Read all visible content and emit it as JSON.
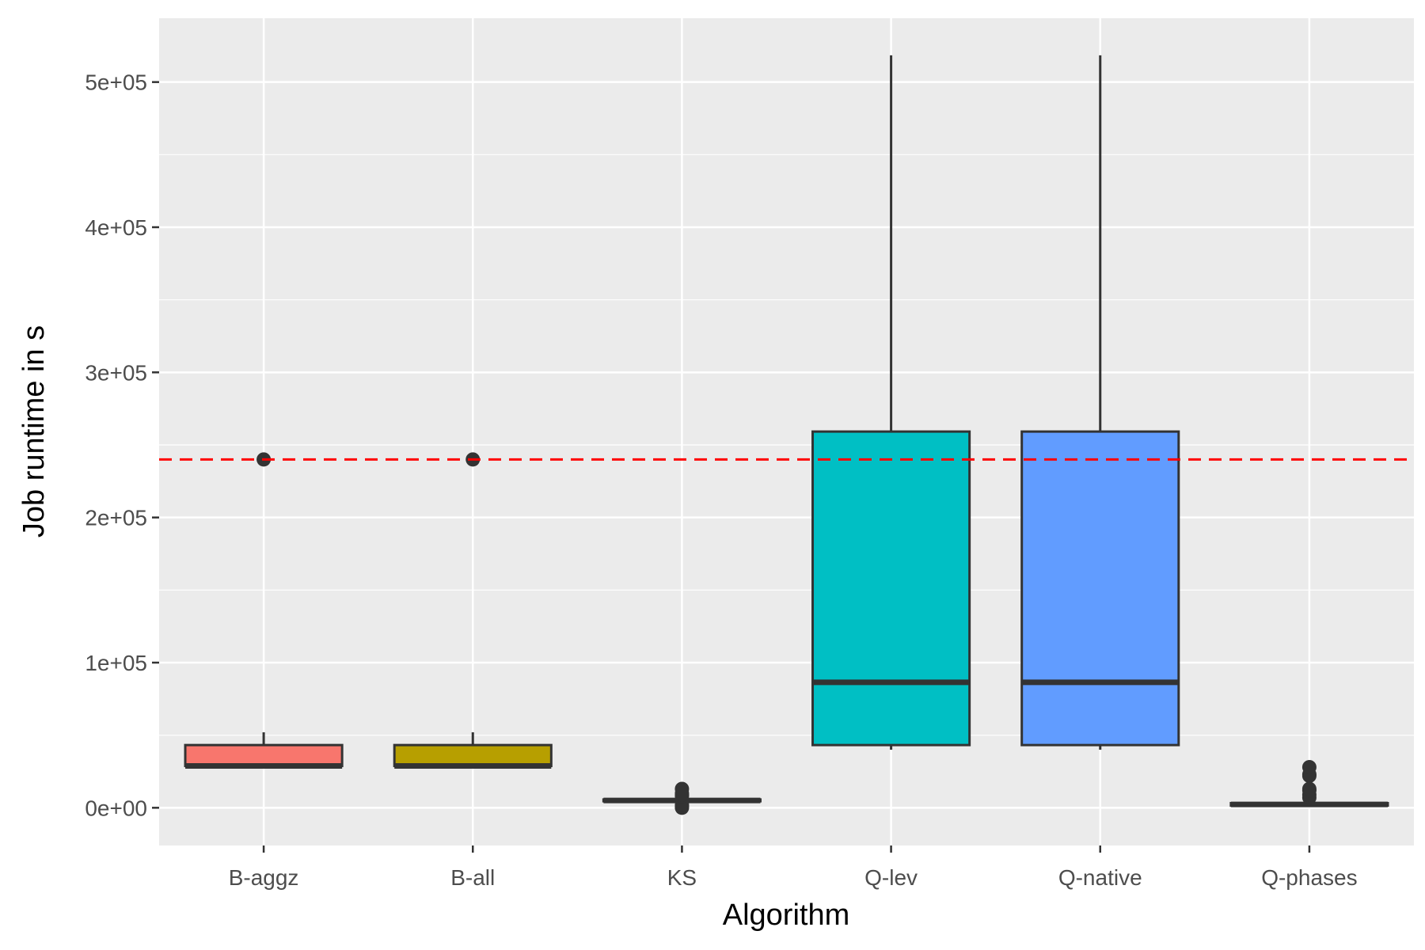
{
  "chart_data": {
    "type": "boxplot",
    "title": "",
    "xlabel": "Algorithm",
    "ylabel": "Job runtime in s",
    "categories": [
      "B-aggz",
      "B-all",
      "KS",
      "Q-lev",
      "Q-native",
      "Q-phases"
    ],
    "y_ticks": [
      0,
      100000,
      200000,
      300000,
      400000,
      500000
    ],
    "y_tick_labels": [
      "0e+00",
      "1e+05",
      "2e+05",
      "3e+05",
      "4e+05",
      "5e+05"
    ],
    "ylim": [
      -26000,
      544000
    ],
    "grid": true,
    "reference_line": {
      "value": 240000,
      "style": "dashed",
      "color": "#ff0000"
    },
    "boxes": [
      {
        "category": "B-aggz",
        "fill": "#f8766d",
        "lower_whisker": 28800,
        "q1": 28800,
        "median": 28800,
        "q3": 43200,
        "upper_whisker": 52000,
        "outliers": [
          240000
        ]
      },
      {
        "category": "B-all",
        "fill": "#b79f00",
        "lower_whisker": 28800,
        "q1": 28800,
        "median": 28800,
        "q3": 43200,
        "upper_whisker": 52000,
        "outliers": [
          240000
        ]
      },
      {
        "category": "KS",
        "fill": "#00ba38",
        "lower_whisker": 4500,
        "q1": 4500,
        "median": 5000,
        "q3": 5700,
        "upper_whisker": 5800,
        "outliers": [
          0,
          1000,
          2000,
          8000,
          9000,
          10000,
          13000
        ]
      },
      {
        "category": "Q-lev",
        "fill": "#00bfc4",
        "lower_whisker": 40000,
        "q1": 43200,
        "median": 86400,
        "q3": 259200,
        "upper_whisker": 518400,
        "outliers": []
      },
      {
        "category": "Q-native",
        "fill": "#619cff",
        "lower_whisker": 40000,
        "q1": 43200,
        "median": 86400,
        "q3": 259200,
        "upper_whisker": 518400,
        "outliers": []
      },
      {
        "category": "Q-phases",
        "fill": "#f564e3",
        "lower_whisker": 1500,
        "q1": 1500,
        "median": 2300,
        "q3": 3200,
        "upper_whisker": 3200,
        "outliers": [
          7000,
          9000,
          12000,
          13000,
          22000,
          23000,
          28000
        ]
      }
    ]
  }
}
